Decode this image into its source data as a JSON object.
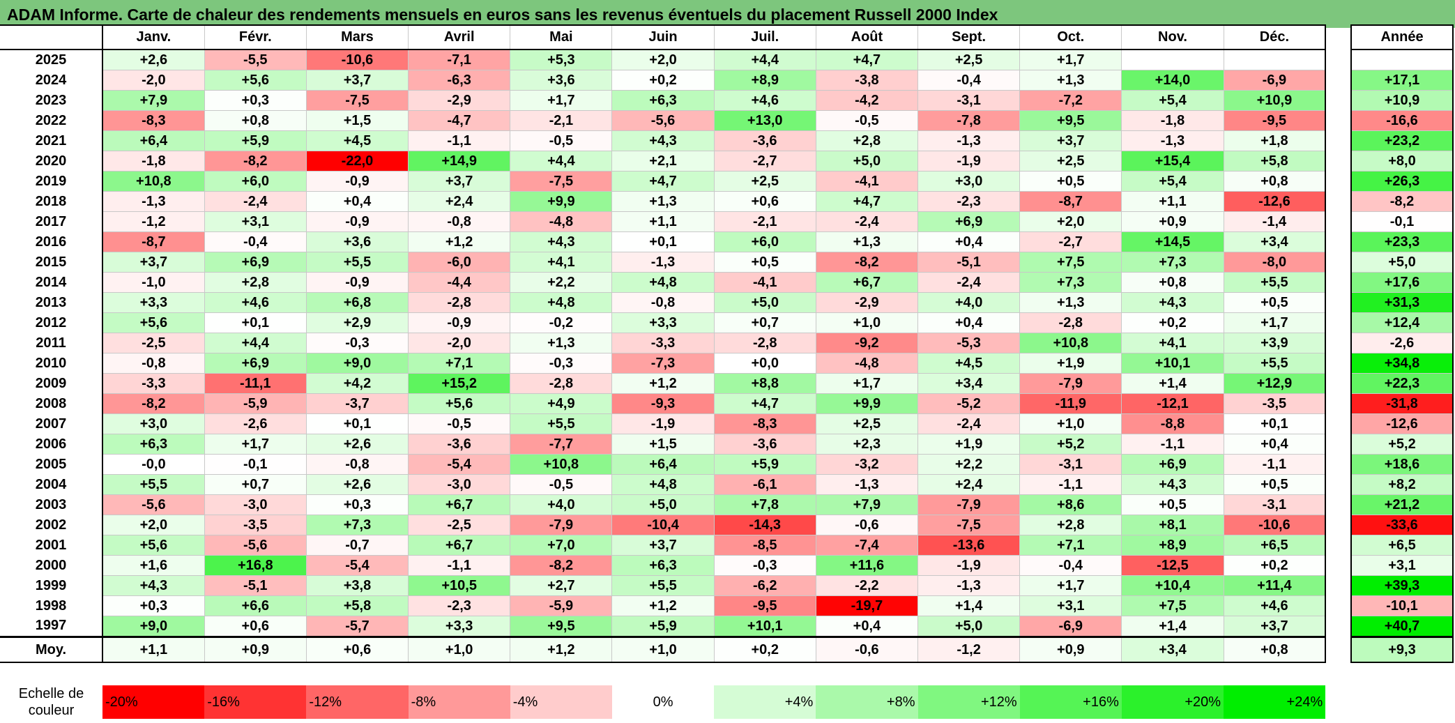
{
  "title": "ADAM Informe. Carte de chaleur des rendements mensuels en euros sans les revenus éventuels du placement Russell 2000 Index",
  "colors": {
    "title_bar": "#7dc67d",
    "max_red": "#ff0000",
    "max_green": "#00ee00",
    "neutral": "#ffffff"
  },
  "chart_data": {
    "type": "heatmap",
    "months": [
      "Janv.",
      "Févr.",
      "Mars",
      "Avril",
      "Mai",
      "Juin",
      "Juil.",
      "Août",
      "Sept.",
      "Oct.",
      "Nov.",
      "Déc."
    ],
    "year_header": "Année",
    "rows": [
      {
        "year": "2025",
        "values": [
          "+2,6",
          "-5,5",
          "-10,6",
          "-7,1",
          "+5,3",
          "+2,0",
          "+4,4",
          "+4,7",
          "+2,5",
          "+1,7",
          "",
          ""
        ],
        "annual": ""
      },
      {
        "year": "2024",
        "values": [
          "-2,0",
          "+5,6",
          "+3,7",
          "-6,3",
          "+3,6",
          "+0,2",
          "+8,9",
          "-3,8",
          "-0,4",
          "+1,3",
          "+14,0",
          "-6,9"
        ],
        "annual": "+17,1"
      },
      {
        "year": "2023",
        "values": [
          "+7,9",
          "+0,3",
          "-7,5",
          "-2,9",
          "+1,7",
          "+6,3",
          "+4,6",
          "-4,2",
          "-3,1",
          "-7,2",
          "+5,4",
          "+10,9"
        ],
        "annual": "+10,9"
      },
      {
        "year": "2022",
        "values": [
          "-8,3",
          "+0,8",
          "+1,5",
          "-4,7",
          "-2,1",
          "-5,6",
          "+13,0",
          "-0,5",
          "-7,8",
          "+9,5",
          "-1,8",
          "-9,5"
        ],
        "annual": "-16,6"
      },
      {
        "year": "2021",
        "values": [
          "+6,4",
          "+5,9",
          "+4,5",
          "-1,1",
          "-0,5",
          "+4,3",
          "-3,6",
          "+2,8",
          "-1,3",
          "+3,7",
          "-1,3",
          "+1,8"
        ],
        "annual": "+23,2"
      },
      {
        "year": "2020",
        "values": [
          "-1,8",
          "-8,2",
          "-22,0",
          "+14,9",
          "+4,4",
          "+2,1",
          "-2,7",
          "+5,0",
          "-1,9",
          "+2,5",
          "+15,4",
          "+5,8"
        ],
        "annual": "+8,0"
      },
      {
        "year": "2019",
        "values": [
          "+10,8",
          "+6,0",
          "-0,9",
          "+3,7",
          "-7,5",
          "+4,7",
          "+2,5",
          "-4,1",
          "+3,0",
          "+0,5",
          "+5,4",
          "+0,8"
        ],
        "annual": "+26,3"
      },
      {
        "year": "2018",
        "values": [
          "-1,3",
          "-2,4",
          "+0,4",
          "+2,4",
          "+9,9",
          "+1,3",
          "+0,6",
          "+4,7",
          "-2,3",
          "-8,7",
          "+1,1",
          "-12,6"
        ],
        "annual": "-8,2"
      },
      {
        "year": "2017",
        "values": [
          "-1,2",
          "+3,1",
          "-0,9",
          "-0,8",
          "-4,8",
          "+1,1",
          "-2,1",
          "-2,4",
          "+6,9",
          "+2,0",
          "+0,9",
          "-1,4"
        ],
        "annual": "-0,1"
      },
      {
        "year": "2016",
        "values": [
          "-8,7",
          "-0,4",
          "+3,6",
          "+1,2",
          "+4,3",
          "+0,1",
          "+6,0",
          "+1,3",
          "+0,4",
          "-2,7",
          "+14,5",
          "+3,4"
        ],
        "annual": "+23,3"
      },
      {
        "year": "2015",
        "values": [
          "+3,7",
          "+6,9",
          "+5,5",
          "-6,0",
          "+4,1",
          "-1,3",
          "+0,5",
          "-8,2",
          "-5,1",
          "+7,5",
          "+7,3",
          "-8,0"
        ],
        "annual": "+5,0"
      },
      {
        "year": "2014",
        "values": [
          "-1,0",
          "+2,8",
          "-0,9",
          "-4,4",
          "+2,2",
          "+4,8",
          "-4,1",
          "+6,7",
          "-2,4",
          "+7,3",
          "+0,8",
          "+5,5"
        ],
        "annual": "+17,6"
      },
      {
        "year": "2013",
        "values": [
          "+3,3",
          "+4,6",
          "+6,8",
          "-2,8",
          "+4,8",
          "-0,8",
          "+5,0",
          "-2,9",
          "+4,0",
          "+1,3",
          "+4,3",
          "+0,5"
        ],
        "annual": "+31,3"
      },
      {
        "year": "2012",
        "values": [
          "+5,6",
          "+0,1",
          "+2,9",
          "-0,9",
          "-0,2",
          "+3,3",
          "+0,7",
          "+1,0",
          "+0,4",
          "-2,8",
          "+0,2",
          "+1,7"
        ],
        "annual": "+12,4"
      },
      {
        "year": "2011",
        "values": [
          "-2,5",
          "+4,4",
          "-0,3",
          "-2,0",
          "+1,3",
          "-3,3",
          "-2,8",
          "-9,2",
          "-5,3",
          "+10,8",
          "+4,1",
          "+3,9"
        ],
        "annual": "-2,6"
      },
      {
        "year": "2010",
        "values": [
          "-0,8",
          "+6,9",
          "+9,0",
          "+7,1",
          "-0,3",
          "-7,3",
          "+0,0",
          "-4,8",
          "+4,5",
          "+1,9",
          "+10,1",
          "+5,5"
        ],
        "annual": "+34,8"
      },
      {
        "year": "2009",
        "values": [
          "-3,3",
          "-11,1",
          "+4,2",
          "+15,2",
          "-2,8",
          "+1,2",
          "+8,8",
          "+1,7",
          "+3,4",
          "-7,9",
          "+1,4",
          "+12,9"
        ],
        "annual": "+22,3"
      },
      {
        "year": "2008",
        "values": [
          "-8,2",
          "-5,9",
          "-3,7",
          "+5,6",
          "+4,9",
          "-9,3",
          "+4,7",
          "+9,9",
          "-5,2",
          "-11,9",
          "-12,1",
          "-3,5"
        ],
        "annual": "-31,8"
      },
      {
        "year": "2007",
        "values": [
          "+3,0",
          "-2,6",
          "+0,1",
          "-0,5",
          "+5,5",
          "-1,9",
          "-8,3",
          "+2,5",
          "-2,4",
          "+1,0",
          "-8,8",
          "+0,1"
        ],
        "annual": "-12,6"
      },
      {
        "year": "2006",
        "values": [
          "+6,3",
          "+1,7",
          "+2,6",
          "-3,6",
          "-7,7",
          "+1,5",
          "-3,6",
          "+2,3",
          "+1,9",
          "+5,2",
          "-1,1",
          "+0,4"
        ],
        "annual": "+5,2"
      },
      {
        "year": "2005",
        "values": [
          "-0,0",
          "-0,1",
          "-0,8",
          "-5,4",
          "+10,8",
          "+6,4",
          "+5,9",
          "-3,2",
          "+2,2",
          "-3,1",
          "+6,9",
          "-1,1"
        ],
        "annual": "+18,6"
      },
      {
        "year": "2004",
        "values": [
          "+5,5",
          "+0,7",
          "+2,6",
          "-3,0",
          "-0,5",
          "+4,8",
          "-6,1",
          "-1,3",
          "+2,4",
          "-1,1",
          "+4,3",
          "+0,5"
        ],
        "annual": "+8,2"
      },
      {
        "year": "2003",
        "values": [
          "-5,6",
          "-3,0",
          "+0,3",
          "+6,7",
          "+4,0",
          "+5,0",
          "+7,8",
          "+7,9",
          "-7,9",
          "+8,6",
          "+0,5",
          "-3,1"
        ],
        "annual": "+21,2"
      },
      {
        "year": "2002",
        "values": [
          "+2,0",
          "-3,5",
          "+7,3",
          "-2,5",
          "-7,9",
          "-10,4",
          "-14,3",
          "-0,6",
          "-7,5",
          "+2,8",
          "+8,1",
          "-10,6"
        ],
        "annual": "-33,6"
      },
      {
        "year": "2001",
        "values": [
          "+5,6",
          "-5,6",
          "-0,7",
          "+6,7",
          "+7,0",
          "+3,7",
          "-8,5",
          "-7,4",
          "-13,6",
          "+7,1",
          "+8,9",
          "+6,5"
        ],
        "annual": "+6,5"
      },
      {
        "year": "2000",
        "values": [
          "+1,6",
          "+16,8",
          "-5,4",
          "-1,1",
          "-8,2",
          "+6,3",
          "-0,3",
          "+11,6",
          "-1,9",
          "-0,4",
          "-12,5",
          "+0,2"
        ],
        "annual": "+3,1"
      },
      {
        "year": "1999",
        "values": [
          "+4,3",
          "-5,1",
          "+3,8",
          "+10,5",
          "+2,7",
          "+5,5",
          "-6,2",
          "-2,2",
          "-1,3",
          "+1,7",
          "+10,4",
          "+11,4"
        ],
        "annual": "+39,3"
      },
      {
        "year": "1998",
        "values": [
          "+0,3",
          "+6,6",
          "+5,8",
          "-2,3",
          "-5,9",
          "+1,2",
          "-9,5",
          "-19,7",
          "+1,4",
          "+3,1",
          "+7,5",
          "+4,6"
        ],
        "annual": "-10,1"
      },
      {
        "year": "1997",
        "values": [
          "+9,0",
          "+0,6",
          "-5,7",
          "+3,3",
          "+9,5",
          "+5,9",
          "+10,1",
          "+0,4",
          "+5,0",
          "-6,9",
          "+1,4",
          "+3,7"
        ],
        "annual": "+40,7"
      }
    ],
    "average": {
      "label": "Moy.",
      "values": [
        "+1,1",
        "+0,9",
        "+0,6",
        "+1,0",
        "+1,2",
        "+1,0",
        "+0,2",
        "-0,6",
        "-1,2",
        "+0,9",
        "+3,4",
        "+0,8"
      ],
      "annual": "+9,3"
    },
    "scale": {
      "label": "Echelle de couleur",
      "steps": [
        {
          "text": "-20%",
          "value": -20
        },
        {
          "text": "-16%",
          "value": -16
        },
        {
          "text": "-12%",
          "value": -12
        },
        {
          "text": "-8%",
          "value": -8
        },
        {
          "text": "-4%",
          "value": -4
        },
        {
          "text": "0%",
          "value": 0
        },
        {
          "text": "+4%",
          "value": 4
        },
        {
          "text": "+8%",
          "value": 8
        },
        {
          "text": "+12%",
          "value": 12
        },
        {
          "text": "+16%",
          "value": 16
        },
        {
          "text": "+20%",
          "value": 20
        },
        {
          "text": "+24%",
          "value": 24
        }
      ]
    }
  }
}
